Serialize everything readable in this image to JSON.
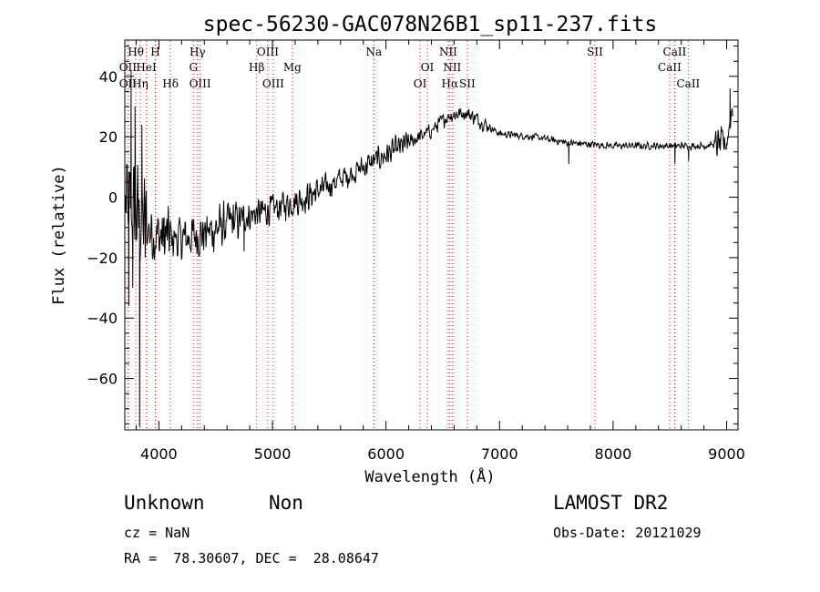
{
  "chart_data": {
    "type": "line",
    "title": "spec-56230-GAC078N26B1_sp11-237.fits",
    "xlabel": "Wavelength (Å)",
    "ylabel": "Flux (relative)",
    "xlim": [
      3700,
      9100
    ],
    "ylim": [
      -77,
      52
    ],
    "xticks": [
      4000,
      5000,
      6000,
      7000,
      8000,
      9000
    ],
    "yticks": [
      -60,
      -40,
      -20,
      0,
      20,
      40
    ],
    "xtick_labels": [
      "4000",
      "5000",
      "6000",
      "7000",
      "8000",
      "9000"
    ],
    "ytick_labels": [
      "−60",
      "−40",
      "−20",
      "0",
      "20",
      "40"
    ],
    "grid": false,
    "line_color": "#000000",
    "marker_color": "#ff0000",
    "continuum": {
      "x": [
        3700,
        3800,
        3900,
        4000,
        4200,
        4400,
        4600,
        4800,
        5000,
        5300,
        5600,
        5900,
        6200,
        6400,
        6550,
        6700,
        6800,
        7000,
        7300,
        7600,
        8000,
        8400,
        8800,
        9000,
        9050
      ],
      "y": [
        -3,
        -6,
        -10,
        -13,
        -14,
        -12,
        -9,
        -6,
        -4,
        0,
        6,
        12,
        18,
        22,
        27,
        28,
        26,
        21,
        20,
        18,
        17,
        17,
        17,
        18,
        30
      ]
    },
    "spikes": [
      {
        "x": 3735,
        "y": -36
      },
      {
        "x": 3755,
        "y": 42
      },
      {
        "x": 3770,
        "y": -30
      },
      {
        "x": 3790,
        "y": 30
      },
      {
        "x": 3830,
        "y": -76
      },
      {
        "x": 3850,
        "y": 24
      },
      {
        "x": 3880,
        "y": -20
      },
      {
        "x": 4750,
        "y": -18
      },
      {
        "x": 7610,
        "y": 11
      },
      {
        "x": 8545,
        "y": 11
      },
      {
        "x": 8665,
        "y": 12
      },
      {
        "x": 9030,
        "y": 36
      }
    ],
    "spectral_lines": [
      {
        "label": "Hθ",
        "wavelength": 3797,
        "row": 0
      },
      {
        "label": "H",
        "wavelength": 3969,
        "row": 0
      },
      {
        "label": "Hγ",
        "wavelength": 4340,
        "row": 0
      },
      {
        "label": "OIII",
        "wavelength": 4959,
        "row": 0
      },
      {
        "label": "Na",
        "wavelength": 5893,
        "row": 0
      },
      {
        "label": "NII",
        "wavelength": 6548,
        "row": 0
      },
      {
        "label": "SII",
        "wavelength": 7840,
        "row": 0
      },
      {
        "label": "CaII",
        "wavelength": 8542,
        "row": 0
      },
      {
        "label": "OII",
        "wavelength": 3727,
        "row": 1
      },
      {
        "label": "HeI",
        "wavelength": 3889,
        "row": 1
      },
      {
        "label": "G",
        "wavelength": 4304,
        "row": 1
      },
      {
        "label": "Hβ",
        "wavelength": 4861,
        "row": 1
      },
      {
        "label": "Mg",
        "wavelength": 5175,
        "row": 1
      },
      {
        "label": "OI",
        "wavelength": 6364,
        "row": 1
      },
      {
        "label": "NII",
        "wavelength": 6583,
        "row": 1
      },
      {
        "label": "CaII",
        "wavelength": 8498,
        "row": 1
      },
      {
        "label": "OII",
        "wavelength": 3727,
        "row": 2
      },
      {
        "label": "Hη",
        "wavelength": 3835,
        "row": 2
      },
      {
        "label": "Hδ",
        "wavelength": 4102,
        "row": 2
      },
      {
        "label": "OIII",
        "wavelength": 4363,
        "row": 2
      },
      {
        "label": "OIII",
        "wavelength": 5007,
        "row": 2
      },
      {
        "label": "OI",
        "wavelength": 6300,
        "row": 2
      },
      {
        "label": "Hα",
        "wavelength": 6563,
        "row": 2
      },
      {
        "label": "SII",
        "wavelength": 6716,
        "row": 2
      },
      {
        "label": "CaII",
        "wavelength": 8662,
        "row": 2
      }
    ]
  },
  "info": {
    "class": "Unknown",
    "subclass": "Non",
    "survey": "LAMOST DR2",
    "cz": "cz = NaN",
    "obs_date": "Obs-Date: 20121029",
    "coords": "RA =  78.30607, DEC =  28.08647"
  }
}
